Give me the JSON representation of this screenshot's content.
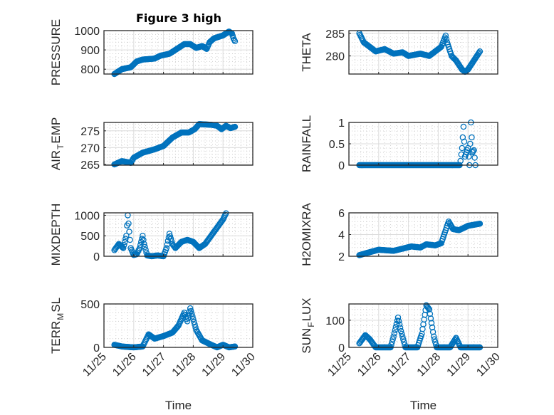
{
  "figure": {
    "title": "Figure 3 high",
    "xlabel": "Time"
  },
  "colors": {
    "marker": "#0072BD",
    "axis": "#262626",
    "grid": "#dcdcdc"
  },
  "chart_data": [
    {
      "type": "scatter",
      "ylabel": {
        "main": "PRESSURE",
        "sub": "",
        "rest": ""
      },
      "ylim": [
        775,
        1000
      ],
      "yticks": [
        800,
        900,
        1000
      ],
      "ytick_labels": [
        "800",
        "900",
        "1000"
      ],
      "points": [
        [
          0.35,
          775
        ],
        [
          0.6,
          800
        ],
        [
          0.9,
          810
        ],
        [
          1.1,
          840
        ],
        [
          1.3,
          850
        ],
        [
          1.7,
          855
        ],
        [
          1.9,
          870
        ],
        [
          2.2,
          880
        ],
        [
          2.5,
          910
        ],
        [
          2.7,
          930
        ],
        [
          2.9,
          930
        ],
        [
          3.1,
          910
        ],
        [
          3.3,
          920
        ],
        [
          3.45,
          905
        ],
        [
          3.55,
          940
        ],
        [
          3.7,
          960
        ],
        [
          4.0,
          975
        ],
        [
          4.2,
          995
        ],
        [
          4.3,
          985
        ],
        [
          4.35,
          960
        ],
        [
          4.4,
          945
        ]
      ]
    },
    {
      "type": "scatter",
      "ylabel": {
        "main": "THETA",
        "sub": "",
        "rest": ""
      },
      "ylim": [
        276,
        285.6
      ],
      "yticks": [
        280,
        285
      ],
      "ytick_labels": [
        "280",
        "285"
      ],
      "points": [
        [
          0.35,
          285
        ],
        [
          0.5,
          283
        ],
        [
          0.7,
          282
        ],
        [
          0.9,
          281
        ],
        [
          1.2,
          281.5
        ],
        [
          1.5,
          280.5
        ],
        [
          1.8,
          280.8
        ],
        [
          2.0,
          280
        ],
        [
          2.4,
          280.5
        ],
        [
          2.7,
          280
        ],
        [
          2.9,
          281
        ],
        [
          3.1,
          282
        ],
        [
          3.25,
          284.5
        ],
        [
          3.3,
          283
        ],
        [
          3.45,
          280
        ],
        [
          3.6,
          279
        ],
        [
          3.8,
          277
        ],
        [
          3.9,
          276.5
        ],
        [
          4.0,
          277
        ],
        [
          4.2,
          279
        ],
        [
          4.4,
          281
        ]
      ]
    },
    {
      "type": "scatter",
      "ylabel": {
        "main": "AIR",
        "sub": "T",
        "rest": "EMP"
      },
      "ylim": [
        264.8,
        277.5
      ],
      "yticks": [
        265,
        270,
        275
      ],
      "ytick_labels": [
        "265",
        "270",
        "275"
      ],
      "points": [
        [
          0.35,
          265
        ],
        [
          0.6,
          266
        ],
        [
          0.9,
          265.5
        ],
        [
          1.0,
          267
        ],
        [
          1.3,
          268.5
        ],
        [
          1.7,
          269.5
        ],
        [
          2.0,
          270.5
        ],
        [
          2.3,
          273
        ],
        [
          2.6,
          274.5
        ],
        [
          2.85,
          274.5
        ],
        [
          3.05,
          275.5
        ],
        [
          3.2,
          277
        ],
        [
          3.6,
          276.8
        ],
        [
          3.8,
          276.5
        ],
        [
          3.95,
          275.5
        ],
        [
          4.1,
          276.5
        ],
        [
          4.25,
          275.8
        ],
        [
          4.4,
          276.2
        ]
      ]
    },
    {
      "type": "scatter",
      "ylabel": {
        "main": "RAINFALL",
        "sub": "",
        "rest": ""
      },
      "ylim": [
        0,
        1
      ],
      "yticks": [
        0,
        0.5,
        1
      ],
      "ytick_labels": [
        "0",
        "0.5",
        "1"
      ],
      "points": [
        [
          0.35,
          0
        ],
        [
          3.72,
          0
        ],
        [
          3.75,
          0.1
        ],
        [
          3.8,
          0.4
        ],
        [
          3.85,
          0.9
        ],
        [
          3.9,
          0.2
        ],
        [
          3.95,
          0.3
        ],
        [
          4.0,
          0.4
        ],
        [
          4.05,
          0
        ],
        [
          4.1,
          1.0
        ],
        [
          4.15,
          0.3
        ],
        [
          4.2,
          0.35
        ],
        [
          4.25,
          0
        ]
      ]
    },
    {
      "type": "scatter",
      "ylabel": {
        "main": "MIXDEPTH",
        "sub": "",
        "rest": ""
      },
      "ylim": [
        0,
        1060
      ],
      "yticks": [
        0,
        500,
        1000
      ],
      "ytick_labels": [
        "0",
        "500",
        "1000"
      ],
      "points": [
        [
          0.35,
          150
        ],
        [
          0.5,
          300
        ],
        [
          0.65,
          200
        ],
        [
          0.75,
          500
        ],
        [
          0.8,
          1000
        ],
        [
          0.85,
          600
        ],
        [
          0.9,
          200
        ],
        [
          1.0,
          30
        ],
        [
          1.1,
          50
        ],
        [
          1.2,
          200
        ],
        [
          1.3,
          500
        ],
        [
          1.35,
          300
        ],
        [
          1.45,
          20
        ],
        [
          1.6,
          0
        ],
        [
          1.8,
          20
        ],
        [
          2.0,
          0
        ],
        [
          2.1,
          200
        ],
        [
          2.2,
          550
        ],
        [
          2.3,
          300
        ],
        [
          2.4,
          200
        ],
        [
          2.6,
          350
        ],
        [
          2.8,
          400
        ],
        [
          3.0,
          350
        ],
        [
          3.2,
          200
        ],
        [
          3.4,
          300
        ],
        [
          3.6,
          500
        ],
        [
          3.8,
          700
        ],
        [
          4.0,
          900
        ],
        [
          4.1,
          1050
        ]
      ]
    },
    {
      "type": "scatter",
      "ylabel": {
        "main": "H2OMIXRA",
        "sub": "",
        "rest": ""
      },
      "ylim": [
        2,
        6
      ],
      "yticks": [
        2,
        4,
        6
      ],
      "ytick_labels": [
        "2",
        "4",
        "6"
      ],
      "points": [
        [
          0.35,
          2.1
        ],
        [
          0.6,
          2.3
        ],
        [
          1.0,
          2.6
        ],
        [
          1.5,
          2.5
        ],
        [
          1.8,
          2.7
        ],
        [
          2.1,
          2.9
        ],
        [
          2.4,
          2.8
        ],
        [
          2.6,
          3.1
        ],
        [
          2.9,
          3.0
        ],
        [
          3.1,
          3.2
        ],
        [
          3.2,
          4.0
        ],
        [
          3.35,
          5.2
        ],
        [
          3.5,
          4.5
        ],
        [
          3.7,
          4.4
        ],
        [
          4.0,
          4.8
        ],
        [
          4.2,
          4.9
        ],
        [
          4.4,
          5.0
        ]
      ]
    },
    {
      "type": "scatter",
      "ylabel": {
        "main": "TERR",
        "sub": "M",
        "rest": "SL"
      },
      "ylim": [
        0,
        500
      ],
      "yticks": [
        0,
        500
      ],
      "ytick_labels": [
        "0",
        "500"
      ],
      "points": [
        [
          0.35,
          30
        ],
        [
          0.6,
          10
        ],
        [
          1.0,
          0
        ],
        [
          1.3,
          10
        ],
        [
          1.5,
          150
        ],
        [
          1.7,
          100
        ],
        [
          2.0,
          130
        ],
        [
          2.3,
          170
        ],
        [
          2.5,
          250
        ],
        [
          2.7,
          400
        ],
        [
          2.8,
          300
        ],
        [
          2.9,
          450
        ],
        [
          3.1,
          200
        ],
        [
          3.3,
          80
        ],
        [
          3.6,
          30
        ],
        [
          3.8,
          0
        ],
        [
          4.0,
          30
        ],
        [
          4.2,
          0
        ],
        [
          4.4,
          10
        ]
      ]
    },
    {
      "type": "scatter",
      "ylabel": {
        "main": "SUN",
        "sub": "F",
        "rest": "LUX"
      },
      "ylim": [
        0,
        160
      ],
      "yticks": [
        0,
        100
      ],
      "ytick_labels": [
        "0",
        "100"
      ],
      "points": [
        [
          0.35,
          15
        ],
        [
          0.55,
          45
        ],
        [
          0.7,
          30
        ],
        [
          0.9,
          0
        ],
        [
          1.4,
          0
        ],
        [
          1.5,
          40
        ],
        [
          1.65,
          110
        ],
        [
          1.75,
          60
        ],
        [
          1.9,
          0
        ],
        [
          2.3,
          0
        ],
        [
          2.45,
          50
        ],
        [
          2.6,
          155
        ],
        [
          2.7,
          140
        ],
        [
          2.85,
          40
        ],
        [
          2.95,
          0
        ],
        [
          3.4,
          0
        ],
        [
          3.6,
          35
        ],
        [
          3.75,
          0
        ],
        [
          4.4,
          0
        ]
      ]
    }
  ],
  "xaxis": {
    "xlim": [
      0,
      5
    ],
    "tick_labels": [
      "11/25",
      "11/26",
      "11/27",
      "11/28",
      "11/29",
      "11/30"
    ]
  }
}
